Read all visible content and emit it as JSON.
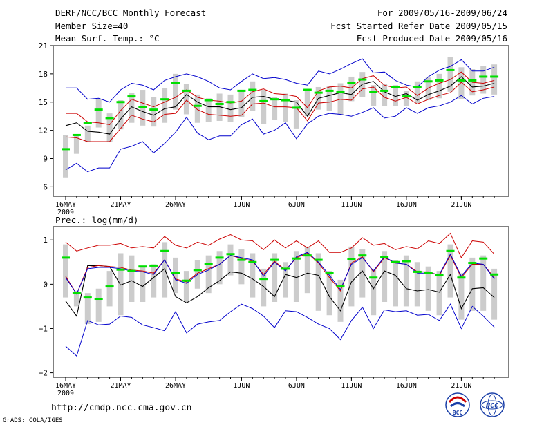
{
  "header": {
    "title": "DERF/NCC/BCC Monthly Forecast",
    "member_size": "Member Size=40",
    "period": "For 2009/05/16-2009/06/24",
    "started": "Fcst Started Refer Date 2009/05/15",
    "produced": "Fcst Produced Date 2009/05/16"
  },
  "footer": {
    "url": "http://cmdp.ncc.cma.gov.cn",
    "grads": "GrADS: COLA/IGES",
    "logo_left": "BCC",
    "logo_right": "NCC"
  },
  "colors": {
    "max_min": "#0000cc",
    "spread": "#cc0000",
    "mean": "#000000",
    "obs": "#00e000",
    "box": "#cccccc"
  },
  "chart_data": [
    {
      "type": "line",
      "title": "Mean Surf. Temp.: °C",
      "xlabel": "",
      "ylabel": "°C",
      "ylim": [
        5,
        21
      ],
      "yticks": [
        6,
        9,
        12,
        15,
        18,
        21
      ],
      "x_ticks": [
        {
          "day": 0,
          "label": "16MAY",
          "year": "2009"
        },
        {
          "day": 5,
          "label": "21MAY"
        },
        {
          "day": 10,
          "label": "26MAY"
        },
        {
          "day": 16,
          "label": "1JUN"
        },
        {
          "day": 21,
          "label": "6JUN"
        },
        {
          "day": 26,
          "label": "11JUN"
        },
        {
          "day": 31,
          "label": "16JUN"
        },
        {
          "day": 36,
          "label": "21JUN"
        }
      ],
      "series": [
        {
          "name": "max",
          "values": [
            16.5,
            16.5,
            15.3,
            15.4,
            15.0,
            16.3,
            17.0,
            16.8,
            16.3,
            17.3,
            17.7,
            18.0,
            17.7,
            17.2,
            16.5,
            16.3,
            17.2,
            18.0,
            17.5,
            17.6,
            17.4,
            17.0,
            16.8,
            18.3,
            18.0,
            18.5,
            19.1,
            19.6,
            18.1,
            18.2,
            17.3,
            16.8,
            16.6,
            17.7,
            18.4,
            18.8,
            19.5,
            18.3,
            18.3,
            18.7
          ]
        },
        {
          "name": "spread_high",
          "values": [
            13.8,
            13.8,
            12.9,
            12.8,
            12.6,
            14.1,
            15.3,
            14.9,
            14.5,
            15.0,
            15.5,
            16.3,
            15.5,
            15.2,
            15.1,
            14.9,
            15.1,
            16.1,
            16.4,
            15.9,
            15.8,
            15.6,
            14.4,
            16.2,
            16.6,
            16.7,
            16.5,
            17.5,
            17.8,
            16.8,
            16.5,
            16.6,
            15.7,
            16.5,
            17.0,
            17.4,
            18.2,
            17.1,
            17.0,
            17.3
          ]
        },
        {
          "name": "ens_mean",
          "values": [
            12.5,
            12.8,
            11.9,
            11.8,
            11.6,
            13.2,
            14.5,
            14.0,
            13.6,
            14.3,
            14.5,
            15.8,
            15.0,
            14.5,
            14.5,
            14.2,
            14.4,
            15.5,
            15.6,
            15.3,
            15.2,
            15.0,
            13.5,
            15.4,
            15.7,
            16.0,
            15.8,
            16.9,
            17.2,
            16.1,
            15.6,
            15.9,
            15.2,
            15.8,
            16.2,
            16.7,
            17.7,
            16.6,
            16.7,
            17.0
          ]
        },
        {
          "name": "spread_low",
          "values": [
            11.3,
            11.2,
            10.8,
            10.8,
            10.8,
            12.2,
            13.6,
            13.2,
            12.9,
            13.7,
            13.8,
            15.2,
            14.2,
            13.7,
            13.6,
            13.5,
            13.6,
            14.8,
            14.9,
            14.5,
            14.5,
            14.4,
            13.0,
            14.9,
            15.0,
            15.3,
            15.2,
            16.4,
            16.6,
            15.5,
            15.1,
            15.5,
            14.8,
            15.3,
            15.7,
            16.0,
            17.1,
            16.1,
            16.3,
            16.6
          ]
        },
        {
          "name": "min",
          "values": [
            7.8,
            8.5,
            7.6,
            8.0,
            8.0,
            10.0,
            10.3,
            10.8,
            9.6,
            10.6,
            11.8,
            13.4,
            11.7,
            11.0,
            11.4,
            11.4,
            12.6,
            13.2,
            11.6,
            12.0,
            12.8,
            11.1,
            12.7,
            13.5,
            13.8,
            13.7,
            13.5,
            13.9,
            14.4,
            13.3,
            13.5,
            14.4,
            13.8,
            14.4,
            14.6,
            15.0,
            15.7,
            14.8,
            15.4,
            15.6
          ]
        }
      ],
      "observed": [
        10.0,
        11.5,
        12.8,
        14.2,
        13.3,
        15.0,
        15.6,
        14.5,
        14.2,
        15.3,
        17.0,
        16.2,
        14.6,
        15.2,
        14.8,
        15.0,
        16.2,
        16.3,
        15.1,
        15.3,
        15.2,
        14.4,
        16.3,
        16.0,
        16.2,
        16.1,
        17.0,
        17.4,
        16.1,
        16.2,
        16.6,
        15.6,
        16.6,
        17.2,
        17.3,
        18.4,
        17.3,
        17.3,
        17.7,
        17.7
      ],
      "box_range": [
        [
          7.0,
          11.5
        ],
        [
          9.5,
          11.6
        ],
        [
          10.8,
          12.5
        ],
        [
          12.3,
          15.3
        ],
        [
          10.8,
          13.8
        ],
        [
          12.1,
          15.2
        ],
        [
          12.8,
          16.0
        ],
        [
          12.5,
          16.3
        ],
        [
          12.4,
          15.5
        ],
        [
          12.8,
          16.5
        ],
        [
          14.2,
          18.0
        ],
        [
          13.7,
          16.9
        ],
        [
          12.8,
          15.8
        ],
        [
          12.9,
          15.4
        ],
        [
          13.0,
          15.9
        ],
        [
          12.9,
          15.8
        ],
        [
          13.4,
          16.3
        ],
        [
          14.1,
          17.2
        ],
        [
          12.7,
          16.3
        ],
        [
          13.1,
          15.5
        ],
        [
          12.9,
          15.9
        ],
        [
          12.2,
          15.2
        ],
        [
          13.5,
          16.3
        ],
        [
          14.2,
          16.6
        ],
        [
          14.1,
          16.7
        ],
        [
          13.6,
          17.0
        ],
        [
          15.1,
          17.7
        ],
        [
          15.5,
          18.2
        ],
        [
          14.6,
          16.8
        ],
        [
          14.6,
          16.9
        ],
        [
          14.6,
          16.8
        ],
        [
          14.6,
          16.2
        ],
        [
          14.9,
          17.2
        ],
        [
          15.2,
          17.6
        ],
        [
          15.4,
          18.0
        ],
        [
          16.1,
          19.8
        ],
        [
          15.3,
          18.7
        ],
        [
          15.7,
          18.5
        ],
        [
          15.9,
          18.8
        ],
        [
          15.8,
          19.0
        ]
      ]
    },
    {
      "type": "line",
      "title": "Prec.: log(mm/d)",
      "xlabel": "",
      "ylabel": "log(mm/d)",
      "ylim": [
        -2.1,
        1.3
      ],
      "yticks": [
        -2,
        -1,
        0,
        1
      ],
      "x_ticks": [
        {
          "day": 0,
          "label": "16MAY",
          "year": "2009"
        },
        {
          "day": 5,
          "label": "21MAY"
        },
        {
          "day": 10,
          "label": "26MAY"
        },
        {
          "day": 16,
          "label": "1JUN"
        },
        {
          "day": 21,
          "label": "6JUN"
        },
        {
          "day": 26,
          "label": "11JUN"
        },
        {
          "day": 31,
          "label": "16JUN"
        },
        {
          "day": 36,
          "label": "21JUN"
        }
      ],
      "series": [
        {
          "name": "max",
          "values": [
            -1.4,
            -1.62,
            -0.82,
            -0.92,
            -0.9,
            -0.72,
            -0.75,
            -0.92,
            -0.98,
            -1.05,
            -0.62,
            -1.1,
            -0.9,
            -0.85,
            -0.82,
            -0.62,
            -0.45,
            -0.55,
            -0.72,
            -0.98,
            -0.6,
            -0.62,
            -0.75,
            -0.9,
            -1.0,
            -1.25,
            -0.82,
            -0.52,
            -1.0,
            -0.58,
            -0.62,
            -0.6,
            -0.7,
            -0.68,
            -0.82,
            -0.45,
            -1.0,
            -0.5,
            -0.72,
            -0.97
          ]
        },
        {
          "name": "spread_high",
          "values": [
            0.95,
            0.75,
            0.82,
            0.88,
            0.88,
            0.92,
            0.82,
            0.85,
            0.82,
            1.08,
            0.88,
            0.82,
            0.95,
            0.88,
            1.02,
            1.12,
            1.0,
            0.98,
            0.78,
            1.0,
            0.82,
            0.98,
            0.82,
            0.98,
            0.72,
            0.72,
            0.82,
            1.05,
            0.88,
            0.92,
            0.78,
            0.85,
            0.8,
            0.98,
            0.92,
            1.15,
            0.6,
            0.98,
            0.95,
            0.68
          ]
        },
        {
          "name": "ens_mean",
          "values": [
            -0.38,
            -0.72,
            0.42,
            0.42,
            0.4,
            -0.02,
            0.08,
            -0.05,
            0.15,
            0.35,
            -0.28,
            -0.42,
            -0.28,
            -0.08,
            0.08,
            0.28,
            0.25,
            0.12,
            -0.05,
            -0.28,
            0.22,
            0.15,
            0.25,
            0.2,
            -0.28,
            -0.6,
            0.05,
            0.3,
            -0.1,
            0.3,
            0.2,
            -0.1,
            -0.15,
            -0.12,
            -0.18,
            0.22,
            -0.55,
            -0.1,
            -0.08,
            -0.3
          ]
        },
        {
          "name": "spread_low",
          "values": [
            0.18,
            -0.22,
            0.38,
            0.42,
            0.4,
            0.38,
            0.32,
            0.3,
            0.25,
            0.55,
            0.12,
            0.05,
            0.25,
            0.35,
            0.45,
            0.65,
            0.58,
            0.52,
            0.22,
            0.52,
            0.32,
            0.6,
            0.7,
            0.48,
            0.15,
            -0.15,
            0.48,
            0.62,
            0.28,
            0.6,
            0.48,
            0.45,
            0.28,
            0.28,
            0.2,
            0.65,
            0.15,
            0.45,
            0.45,
            0.15
          ]
        },
        {
          "name": "min",
          "values": [
            0.15,
            -0.22,
            0.35,
            0.38,
            0.38,
            0.35,
            0.3,
            0.28,
            0.22,
            0.55,
            0.1,
            0.02,
            0.22,
            0.32,
            0.45,
            0.65,
            0.6,
            0.55,
            0.18,
            0.5,
            0.3,
            0.62,
            0.72,
            0.5,
            0.2,
            -0.12,
            0.45,
            0.6,
            0.3,
            0.62,
            0.48,
            0.45,
            0.25,
            0.25,
            0.22,
            0.68,
            0.18,
            0.48,
            0.45,
            0.12
          ]
        }
      ],
      "observed": [
        0.6,
        -0.2,
        -0.3,
        -0.33,
        -0.05,
        0.33,
        0.3,
        0.4,
        0.42,
        0.75,
        0.25,
        0.08,
        0.32,
        0.45,
        0.6,
        0.68,
        0.55,
        0.5,
        0.12,
        0.55,
        0.35,
        0.58,
        0.65,
        0.55,
        0.25,
        -0.05,
        0.57,
        0.65,
        0.15,
        0.62,
        0.5,
        0.52,
        0.28,
        0.25,
        0.2,
        0.75,
        0.15,
        0.48,
        0.58,
        0.22
      ],
      "box_range": [
        [
          -0.3,
          0.9
        ],
        [
          -0.5,
          -0.15
        ],
        [
          -0.9,
          -0.2
        ],
        [
          -0.85,
          -0.1
        ],
        [
          -0.5,
          0.3
        ],
        [
          -0.7,
          0.7
        ],
        [
          -0.4,
          0.65
        ],
        [
          -0.4,
          0.4
        ],
        [
          -0.3,
          0.45
        ],
        [
          -0.3,
          0.95
        ],
        [
          -0.2,
          0.6
        ],
        [
          -0.4,
          0.3
        ],
        [
          -0.1,
          0.55
        ],
        [
          -0.2,
          0.65
        ],
        [
          0.0,
          0.75
        ],
        [
          0.2,
          0.9
        ],
        [
          0.0,
          0.8
        ],
        [
          -0.3,
          0.7
        ],
        [
          -0.5,
          0.35
        ],
        [
          -0.4,
          0.7
        ],
        [
          -0.3,
          0.5
        ],
        [
          -0.4,
          0.75
        ],
        [
          -0.2,
          0.85
        ],
        [
          -0.6,
          0.7
        ],
        [
          -0.7,
          0.3
        ],
        [
          -0.85,
          0.1
        ],
        [
          -0.5,
          0.85
        ],
        [
          -0.3,
          0.8
        ],
        [
          -0.7,
          0.35
        ],
        [
          -0.4,
          0.75
        ],
        [
          -0.5,
          0.55
        ],
        [
          -0.5,
          0.65
        ],
        [
          -0.5,
          0.5
        ],
        [
          -0.6,
          0.4
        ],
        [
          -0.7,
          0.3
        ],
        [
          -0.3,
          0.9
        ],
        [
          -0.8,
          0.25
        ],
        [
          -0.6,
          0.6
        ],
        [
          -0.6,
          0.65
        ],
        [
          -0.8,
          0.35
        ]
      ]
    }
  ]
}
